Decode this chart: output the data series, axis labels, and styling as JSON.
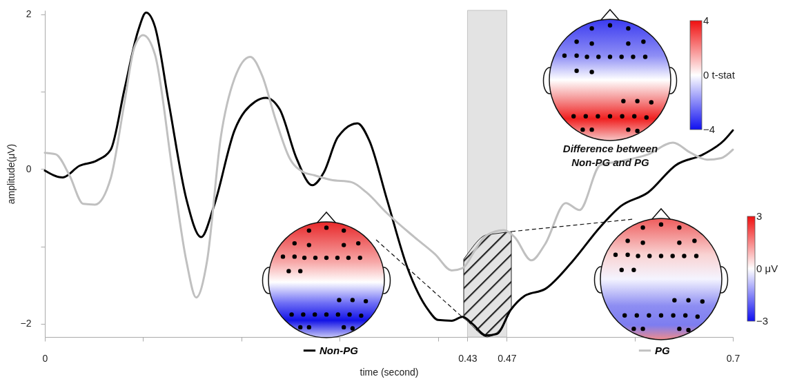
{
  "chart_data": {
    "type": "line",
    "xlabel": "time (second)",
    "ylabel": "amplitude(μV)",
    "xlim": [
      0,
      0.7
    ],
    "ylim": [
      -2.17,
      2.05
    ],
    "xticks": [
      0,
      {
        "value": 0.1,
        "label": null
      },
      {
        "value": 0.2,
        "label": null
      },
      {
        "value": 0.3,
        "label": null
      },
      {
        "value": 0.4,
        "label": null
      },
      0.43,
      0.47,
      {
        "value": 0.6,
        "label": null
      },
      0.7
    ],
    "yticks": [
      -2,
      {
        "value": -1,
        "label": null
      },
      0,
      {
        "value": 1,
        "label": null
      },
      2
    ],
    "grid": false,
    "legend": "bottom",
    "bands": [
      {
        "axis": "x",
        "from": 0.43,
        "to": 0.47,
        "color": "#e3e3e3"
      }
    ],
    "annotations": [
      "Difference between Non-PG and PG",
      "4",
      "0 t-stat",
      "−4",
      "3",
      "0 μV",
      "−3"
    ],
    "series": [
      {
        "name": "Non-PG",
        "color": "#000000",
        "x": [
          0,
          0.018,
          0.035,
          0.053,
          0.067,
          0.081,
          0.095,
          0.103,
          0.112,
          0.126,
          0.144,
          0.159,
          0.172,
          0.193,
          0.214,
          0.225,
          0.239,
          0.256,
          0.272,
          0.284,
          0.298,
          0.318,
          0.33,
          0.348,
          0.369,
          0.39,
          0.4,
          0.414,
          0.425,
          0.435,
          0.449,
          0.46,
          0.474,
          0.488,
          0.509,
          0.537,
          0.565,
          0.586,
          0.614,
          0.642,
          0.67,
          0.691,
          0.7
        ],
        "values": [
          -0.02,
          -0.11,
          0.04,
          0.11,
          0.25,
          1.03,
          1.79,
          2.02,
          1.84,
          0.86,
          -0.39,
          -0.88,
          -0.48,
          0.5,
          0.87,
          0.92,
          0.77,
          0.14,
          -0.21,
          -0.04,
          0.41,
          0.59,
          0.37,
          -0.39,
          -1.28,
          -1.82,
          -1.95,
          -1.96,
          -1.91,
          -2.0,
          -2.15,
          -2.13,
          -1.82,
          -1.64,
          -1.55,
          -1.19,
          -0.75,
          -0.48,
          -0.3,
          0.05,
          0.19,
          0.37,
          0.5
        ]
      },
      {
        "name": "PG",
        "color": "#c0c0c0",
        "x": [
          0,
          0.011,
          0.025,
          0.039,
          0.051,
          0.067,
          0.081,
          0.091,
          0.1,
          0.112,
          0.13,
          0.144,
          0.154,
          0.165,
          0.179,
          0.193,
          0.209,
          0.221,
          0.235,
          0.249,
          0.263,
          0.274,
          0.291,
          0.312,
          0.327,
          0.348,
          0.376,
          0.397,
          0.414,
          0.425,
          0.439,
          0.449,
          0.467,
          0.478,
          0.495,
          0.509,
          0.53,
          0.544,
          0.565,
          0.586,
          0.614,
          0.639,
          0.657,
          0.674,
          0.688,
          0.7
        ],
        "values": [
          0.21,
          0.19,
          -0.08,
          -0.45,
          -0.46,
          -0.12,
          0.86,
          1.57,
          1.73,
          1.48,
          -0.04,
          -1.19,
          -1.66,
          -1.19,
          0.41,
          1.17,
          1.45,
          1.21,
          0.63,
          0.14,
          -0.04,
          -0.08,
          -0.14,
          -0.17,
          -0.3,
          -0.57,
          -0.88,
          -1.1,
          -1.31,
          -1.28,
          -1.02,
          -0.86,
          -0.79,
          -0.88,
          -1.18,
          -0.97,
          -0.44,
          -0.53,
          0.05,
          0.1,
          0.19,
          0.34,
          0.21,
          0.12,
          0.14,
          0.25
        ]
      }
    ]
  }
}
